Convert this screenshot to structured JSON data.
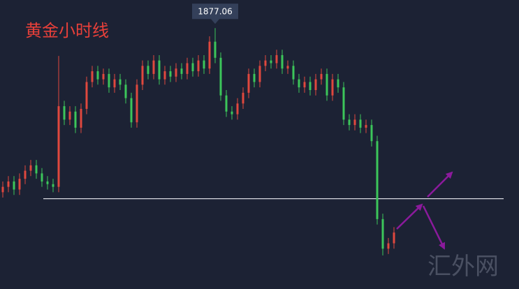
{
  "chart_data": {
    "type": "candlestick",
    "title": "黄金小时线",
    "watermark": "汇外网",
    "open": [
      1816,
      1818,
      1820,
      1817,
      1821,
      1824,
      1826,
      1823,
      1820,
      1819,
      1818,
      1848,
      1843,
      1846,
      1840,
      1847,
      1857,
      1861,
      1858,
      1860,
      1855,
      1858,
      1856,
      1851,
      1842,
      1856,
      1863,
      1860,
      1865,
      1858,
      1861,
      1859,
      1862,
      1860,
      1864,
      1861,
      1865,
      1862,
      1872,
      1866,
      1852,
      1846,
      1845,
      1849,
      1853,
      1860,
      1857,
      1863,
      1865,
      1864,
      1867,
      1862,
      1863,
      1858,
      1855,
      1857,
      1854,
      1858,
      1860,
      1852,
      1858,
      1855,
      1843,
      1841,
      1843,
      1840,
      1841,
      1835,
      1806,
      1795,
      1797
    ],
    "high": [
      1820,
      1822,
      1822,
      1823,
      1826,
      1828,
      1828,
      1825,
      1822,
      1821,
      1866.7,
      1850,
      1848,
      1848,
      1849,
      1859,
      1863,
      1863,
      1862,
      1862,
      1860,
      1860,
      1858,
      1853,
      1858,
      1865,
      1865,
      1867,
      1867,
      1863,
      1863,
      1864,
      1864,
      1866,
      1866,
      1867,
      1867,
      1874,
      1877.06,
      1868,
      1854,
      1848,
      1851,
      1855,
      1862,
      1862,
      1865,
      1867,
      1867,
      1869,
      1869,
      1865,
      1865,
      1860,
      1859,
      1859,
      1860,
      1862,
      1862,
      1860,
      1860,
      1857,
      1845,
      1845,
      1845,
      1843,
      1843,
      1837,
      1808,
      1799,
      1803
    ],
    "low": [
      1814,
      1816,
      1815,
      1815,
      1819,
      1822,
      1821,
      1818,
      1817,
      1816,
      1816,
      1841,
      1841,
      1838,
      1838,
      1845,
      1855,
      1856,
      1856,
      1853,
      1853,
      1854,
      1849,
      1840,
      1840,
      1854,
      1858,
      1858,
      1856,
      1856,
      1857,
      1857,
      1858,
      1858,
      1859,
      1859,
      1860,
      1860,
      1864,
      1850,
      1844,
      1843,
      1843,
      1847,
      1851,
      1855,
      1855,
      1861,
      1862,
      1862,
      1860,
      1860,
      1856,
      1853,
      1853,
      1852,
      1852,
      1856,
      1850,
      1850,
      1853,
      1841,
      1839,
      1839,
      1838,
      1838,
      1833,
      1804,
      1792.5,
      1793,
      1795
    ],
    "close": [
      1818,
      1820,
      1817,
      1821,
      1824,
      1826,
      1823,
      1820,
      1819,
      1818,
      1848,
      1843,
      1846,
      1840,
      1847,
      1857,
      1861,
      1858,
      1860,
      1855,
      1858,
      1856,
      1851,
      1842,
      1856,
      1863,
      1860,
      1865,
      1858,
      1861,
      1859,
      1862,
      1860,
      1864,
      1861,
      1865,
      1862,
      1872,
      1866,
      1852,
      1846,
      1845,
      1849,
      1853,
      1860,
      1857,
      1863,
      1865,
      1864,
      1867,
      1862,
      1863,
      1858,
      1855,
      1857,
      1854,
      1858,
      1860,
      1852,
      1858,
      1855,
      1843,
      1841,
      1843,
      1840,
      1841,
      1835,
      1806,
      1795,
      1797,
      1801
    ],
    "up_color": "#e0483e",
    "down_color": "#3cc65a",
    "ylim": [
      1780,
      1887.5
    ],
    "hline": 1813.6,
    "callout_index": 38
  }
}
